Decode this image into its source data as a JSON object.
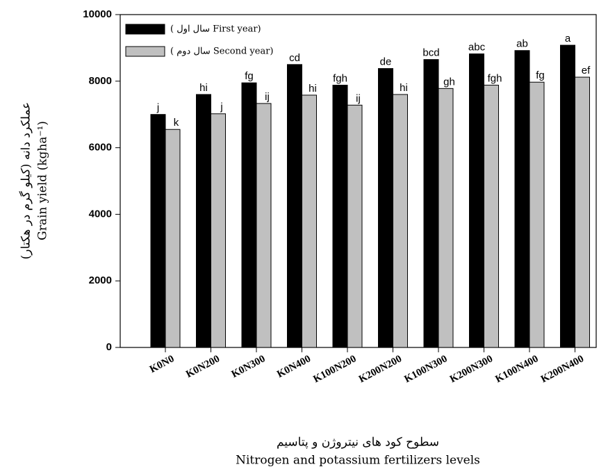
{
  "chart_data": {
    "type": "bar",
    "categories": [
      "K0N0",
      "K0N200",
      "K0N300",
      "K0N400",
      "K100N200",
      "K200N200",
      "K100N300",
      "K200N300",
      "K100N400",
      "K200N400"
    ],
    "series": [
      {
        "name": "( سال اول First  year)",
        "color": "#000000",
        "values": [
          7000,
          7600,
          7950,
          8500,
          7880,
          8380,
          8650,
          8820,
          8920,
          9080
        ],
        "letters": [
          "j",
          "hi",
          "fg",
          "cd",
          "fgh",
          "de",
          "bcd",
          "abc",
          "ab",
          "a"
        ]
      },
      {
        "name": "( سال دوم Second year)",
        "color": "#c0c0c0",
        "values": [
          6550,
          7020,
          7330,
          7580,
          7280,
          7600,
          7780,
          7880,
          7970,
          8120
        ],
        "letters": [
          "k",
          "j",
          "ij",
          "hi",
          "ij",
          "hi",
          "gh",
          "fgh",
          "fg",
          "ef"
        ]
      }
    ],
    "ylim": [
      0,
      10000
    ],
    "yticks": [
      0,
      2000,
      4000,
      6000,
      8000,
      10000
    ],
    "ylabel": [
      "عملکرد دانه (کیلو گرم در هکتار)",
      "Grain yield (kgha⁻¹)"
    ],
    "xlabel": [
      "سطوح کود های نیتروژن و پتاسیم",
      "Nitrogen and potassium fertilizers levels"
    ]
  }
}
